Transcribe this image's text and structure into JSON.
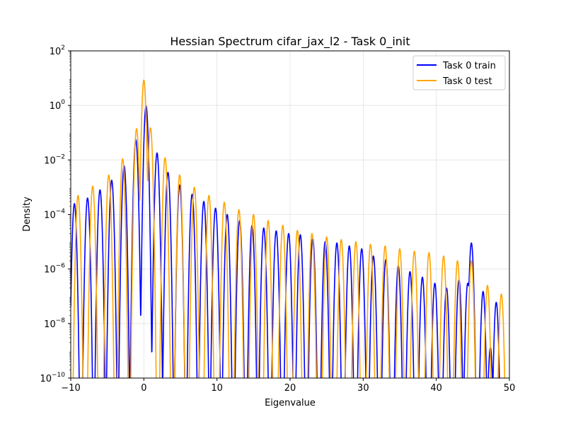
{
  "chart_data": {
    "type": "line",
    "title": "Hessian Spectrum cifar_jax_l2 - Task 0_init",
    "xlabel": "Eigenvalue",
    "ylabel": "Density",
    "xlim": [
      -10,
      50
    ],
    "ylim": [
      1e-10,
      100
    ],
    "yscale": "log",
    "grid": true,
    "legend_position": "top-right",
    "x_ticks": [
      -10,
      0,
      10,
      20,
      30,
      40,
      50
    ],
    "y_tick_exponents": [
      -10,
      -8,
      -6,
      -4,
      -2,
      0,
      2
    ],
    "y_tick_base": "10",
    "series": [
      {
        "name": "Task 0 train",
        "color": "#0000ff",
        "peaks": [
          [
            -9.5,
            0.00025
          ],
          [
            -7.7,
            0.0004
          ],
          [
            -6.0,
            0.0008
          ],
          [
            -4.4,
            0.0018
          ],
          [
            -2.7,
            0.006
          ],
          [
            -1.1,
            0.055
          ],
          [
            0.3,
            0.95
          ],
          [
            1.8,
            0.018
          ],
          [
            3.3,
            0.0035
          ],
          [
            4.9,
            0.0012
          ],
          [
            6.6,
            0.00055
          ],
          [
            8.2,
            0.0003
          ],
          [
            9.8,
            0.00017
          ],
          [
            11.4,
            0.0001
          ],
          [
            13.1,
            6e-05
          ],
          [
            14.8,
            4e-05
          ],
          [
            16.4,
            3.2e-05
          ],
          [
            18.1,
            2.5e-05
          ],
          [
            19.8,
            2e-05
          ],
          [
            21.4,
            1.8e-05
          ],
          [
            23.1,
            1.3e-05
          ],
          [
            24.8,
            1e-05
          ],
          [
            26.4,
            9e-06
          ],
          [
            28.1,
            7e-06
          ],
          [
            29.8,
            5.5e-06
          ],
          [
            31.4,
            3e-06
          ],
          [
            33.1,
            2.2e-06
          ],
          [
            34.8,
            1.3e-06
          ],
          [
            36.4,
            8e-07
          ],
          [
            38.1,
            5e-07
          ],
          [
            39.8,
            3e-07
          ],
          [
            41.4,
            2e-07
          ],
          [
            43.1,
            4e-07
          ],
          [
            44.3,
            3e-07
          ],
          [
            44.8,
            9e-06
          ],
          [
            46.4,
            1.5e-07
          ],
          [
            47.4,
            1.3e-09
          ],
          [
            48.2,
            6e-08
          ]
        ]
      },
      {
        "name": "Task 0 test",
        "color": "#ffa500",
        "peaks": [
          [
            -9.0,
            0.0005
          ],
          [
            -7.0,
            0.0011
          ],
          [
            -4.8,
            0.0028
          ],
          [
            -2.9,
            0.011
          ],
          [
            -1.0,
            0.14
          ],
          [
            0.0,
            8.5
          ],
          [
            0.9,
            0.15
          ],
          [
            2.9,
            0.012
          ],
          [
            4.9,
            0.0028
          ],
          [
            6.9,
            0.001
          ],
          [
            8.9,
            0.0005
          ],
          [
            11.0,
            0.00028
          ],
          [
            13.0,
            0.00015
          ],
          [
            15.0,
            0.0001
          ],
          [
            17.0,
            6e-05
          ],
          [
            19.0,
            4e-05
          ],
          [
            21.0,
            2.6e-05
          ],
          [
            23.0,
            2e-05
          ],
          [
            25.0,
            1.5e-05
          ],
          [
            27.0,
            1.2e-05
          ],
          [
            29.0,
            1e-05
          ],
          [
            31.0,
            8e-06
          ],
          [
            33.0,
            7e-06
          ],
          [
            35.0,
            5.5e-06
          ],
          [
            37.0,
            4.5e-06
          ],
          [
            39.0,
            4e-06
          ],
          [
            41.0,
            3e-06
          ],
          [
            42.9,
            2e-06
          ],
          [
            44.8,
            2e-06
          ],
          [
            47.0,
            2.5e-07
          ],
          [
            48.9,
            1.2e-07
          ]
        ]
      }
    ]
  }
}
